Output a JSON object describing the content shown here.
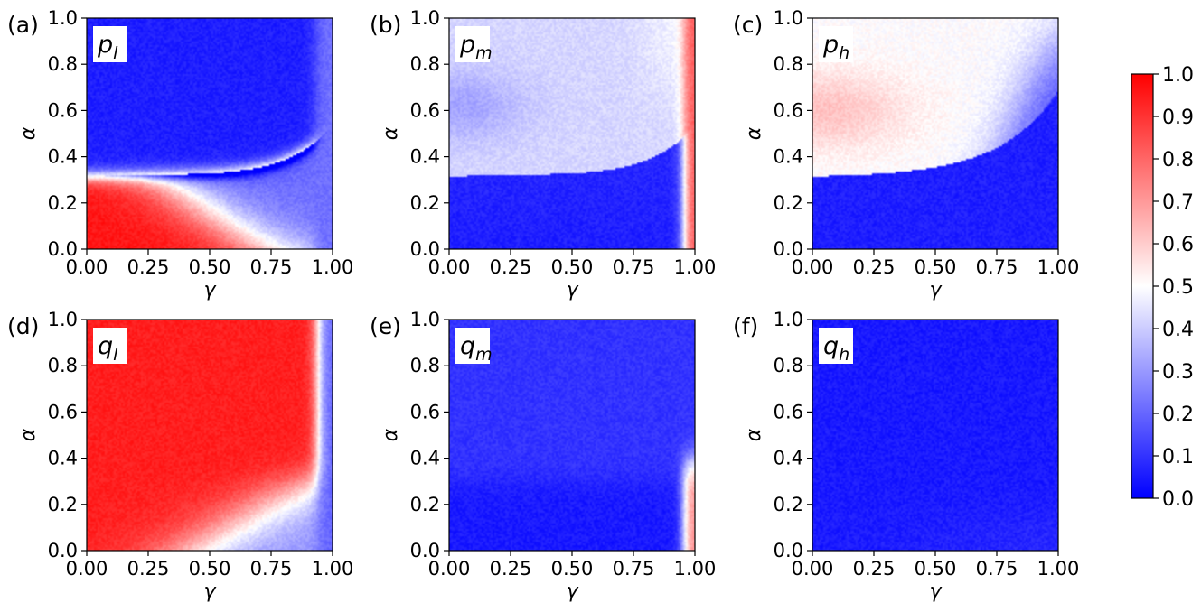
{
  "chart_data": {
    "type": "heatmap",
    "xlabel": "γ",
    "ylabel": "α",
    "xlim": [
      0,
      1
    ],
    "ylim": [
      0,
      1
    ],
    "xticks": [
      "0.00",
      "0.25",
      "0.50",
      "0.75",
      "1.00"
    ],
    "yticks": [
      "0.0",
      "0.2",
      "0.4",
      "0.6",
      "0.8",
      "1.0"
    ],
    "grid": false,
    "colormap": "bwr",
    "colors": {
      "low": "#0000ff",
      "mid": "#ffffff",
      "high": "#ff0000"
    },
    "colorbar": {
      "min": 0.0,
      "max": 1.0,
      "ticks": [
        "0.0",
        "0.1",
        "0.2",
        "0.3",
        "0.4",
        "0.5",
        "0.6",
        "0.7",
        "0.8",
        "0.9",
        "1.0"
      ],
      "placement": "right"
    },
    "panels": [
      {
        "id": "pl",
        "letter": "(a)",
        "label_base": "p",
        "label_sub": "l",
        "pattern": "p_low"
      },
      {
        "id": "pm",
        "letter": "(b)",
        "label_base": "p",
        "label_sub": "m",
        "pattern": "p_mid"
      },
      {
        "id": "ph",
        "letter": "(c)",
        "label_base": "p",
        "label_sub": "h",
        "pattern": "p_high"
      },
      {
        "id": "ql",
        "letter": "(d)",
        "label_base": "q",
        "label_sub": "l",
        "pattern": "q_low"
      },
      {
        "id": "qm",
        "letter": "(e)",
        "label_base": "q",
        "label_sub": "m",
        "pattern": "q_mid"
      },
      {
        "id": "qh",
        "letter": "(f)",
        "label_base": "q",
        "label_sub": "h",
        "pattern": "q_high"
      }
    ]
  }
}
